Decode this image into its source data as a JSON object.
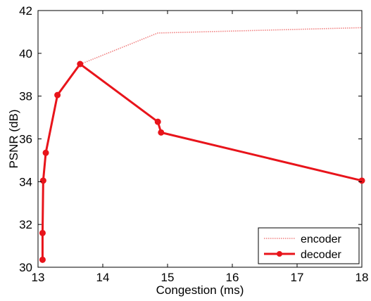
{
  "chart_data": {
    "type": "line",
    "xlabel": "Congestion (ms)",
    "ylabel": "PSNR (dB)",
    "xlim": [
      13,
      18
    ],
    "ylim": [
      30,
      42
    ],
    "xticks": [
      "13",
      "14",
      "15",
      "16",
      "17",
      "18"
    ],
    "yticks": [
      "30",
      "32",
      "34",
      "36",
      "38",
      "40",
      "42"
    ],
    "grid": false,
    "legend_position": "bottom-right",
    "series": [
      {
        "name": "encoder",
        "style": "dotted",
        "color": "#f08080",
        "markers": false,
        "points": [
          [
            13.66,
            39.5
          ],
          [
            14.85,
            40.95
          ],
          [
            18.0,
            41.2
          ]
        ]
      },
      {
        "name": "decoder",
        "style": "solid",
        "color": "#e8141b",
        "markers": true,
        "points": [
          [
            13.07,
            30.35
          ],
          [
            13.07,
            31.6
          ],
          [
            13.08,
            34.05
          ],
          [
            13.12,
            35.35
          ],
          [
            13.3,
            38.05
          ],
          [
            13.65,
            39.5
          ],
          [
            14.85,
            36.8
          ],
          [
            14.9,
            36.3
          ],
          [
            18.0,
            34.05
          ]
        ]
      }
    ]
  }
}
